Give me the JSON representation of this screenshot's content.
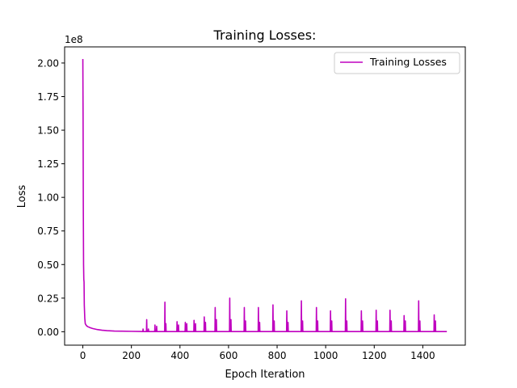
{
  "chart_data": {
    "type": "line",
    "title": "Training Losses:",
    "xlabel": "Epoch Iteration",
    "ylabel": "Loss",
    "y_offset_label": "1e8",
    "xlim": [
      -75,
      1575
    ],
    "ylim": [
      -0.1,
      2.12
    ],
    "xticks": [
      0,
      200,
      400,
      600,
      800,
      1000,
      1200,
      1400
    ],
    "yticks": [
      0.0,
      0.25,
      0.5,
      0.75,
      1.0,
      1.25,
      1.5,
      1.75,
      2.0
    ],
    "ytick_labels": [
      "0.00",
      "0.25",
      "0.50",
      "0.75",
      "1.00",
      "1.25",
      "1.50",
      "1.75",
      "2.00"
    ],
    "legend_position": "upper-right",
    "grid": false,
    "series": [
      {
        "name": "Training Losses",
        "color": "#bf00bf",
        "x_range": [
          0,
          1499
        ],
        "initial_values": [
          [
            0,
            2.03
          ],
          [
            1,
            1.6
          ],
          [
            2,
            0.9
          ],
          [
            3,
            0.5
          ],
          [
            4,
            0.39
          ],
          [
            5,
            0.37
          ],
          [
            6,
            0.2
          ],
          [
            8,
            0.1
          ],
          [
            10,
            0.06
          ],
          [
            15,
            0.045
          ],
          [
            20,
            0.038
          ],
          [
            30,
            0.03
          ],
          [
            40,
            0.024
          ],
          [
            60,
            0.016
          ],
          [
            80,
            0.011
          ],
          [
            100,
            0.008
          ],
          [
            130,
            0.005
          ],
          [
            160,
            0.004
          ],
          [
            200,
            0.003
          ],
          [
            240,
            0.002
          ]
        ],
        "baseline_value": 0.001,
        "spikes": [
          [
            248,
            0.02
          ],
          [
            263,
            0.09
          ],
          [
            270,
            0.02
          ],
          [
            297,
            0.05
          ],
          [
            304,
            0.04
          ],
          [
            338,
            0.22
          ],
          [
            342,
            0.06
          ],
          [
            388,
            0.075
          ],
          [
            394,
            0.05
          ],
          [
            422,
            0.07
          ],
          [
            428,
            0.06
          ],
          [
            458,
            0.085
          ],
          [
            464,
            0.06
          ],
          [
            500,
            0.11
          ],
          [
            505,
            0.07
          ],
          [
            545,
            0.18
          ],
          [
            550,
            0.09
          ],
          [
            605,
            0.25
          ],
          [
            610,
            0.09
          ],
          [
            665,
            0.18
          ],
          [
            670,
            0.08
          ],
          [
            723,
            0.18
          ],
          [
            728,
            0.07
          ],
          [
            783,
            0.2
          ],
          [
            788,
            0.08
          ],
          [
            840,
            0.155
          ],
          [
            845,
            0.07
          ],
          [
            900,
            0.23
          ],
          [
            905,
            0.08
          ],
          [
            962,
            0.18
          ],
          [
            967,
            0.08
          ],
          [
            1020,
            0.155
          ],
          [
            1025,
            0.08
          ],
          [
            1082,
            0.245
          ],
          [
            1087,
            0.08
          ],
          [
            1147,
            0.155
          ],
          [
            1152,
            0.08
          ],
          [
            1208,
            0.16
          ],
          [
            1213,
            0.08
          ],
          [
            1265,
            0.16
          ],
          [
            1270,
            0.08
          ],
          [
            1323,
            0.12
          ],
          [
            1328,
            0.08
          ],
          [
            1383,
            0.23
          ],
          [
            1388,
            0.08
          ],
          [
            1447,
            0.125
          ],
          [
            1452,
            0.08
          ]
        ]
      }
    ]
  }
}
